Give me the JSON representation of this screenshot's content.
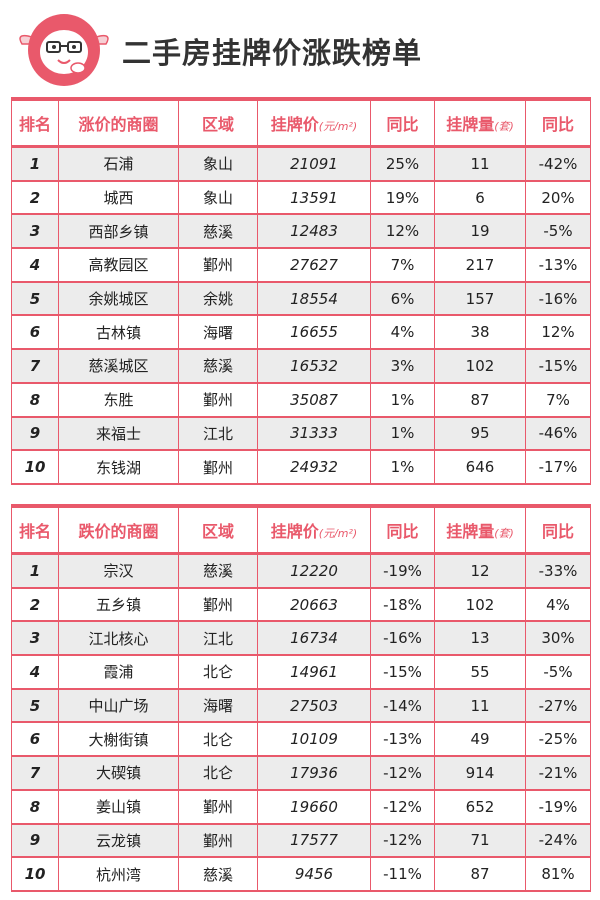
{
  "title": "二手房挂牌价涨跌榜单",
  "accent_color": "#e9596b",
  "logo_icon": "rabbit-mascot-icon",
  "rise_table": {
    "headers": {
      "rank": "排名",
      "area": "涨价的商圈",
      "district": "区域",
      "price": "挂牌价",
      "price_unit": "(元/m²)",
      "price_yoy": "同比",
      "volume": "挂牌量",
      "volume_unit": "(套)",
      "volume_yoy": "同比"
    },
    "rows": [
      {
        "rank": "1",
        "area": "石浦",
        "district": "象山",
        "price": "21091",
        "price_yoy": "25%",
        "volume": "11",
        "volume_yoy": "-42%"
      },
      {
        "rank": "2",
        "area": "城西",
        "district": "象山",
        "price": "13591",
        "price_yoy": "19%",
        "volume": "6",
        "volume_yoy": "20%"
      },
      {
        "rank": "3",
        "area": "西部乡镇",
        "district": "慈溪",
        "price": "12483",
        "price_yoy": "12%",
        "volume": "19",
        "volume_yoy": "-5%"
      },
      {
        "rank": "4",
        "area": "高教园区",
        "district": "鄞州",
        "price": "27627",
        "price_yoy": "7%",
        "volume": "217",
        "volume_yoy": "-13%"
      },
      {
        "rank": "5",
        "area": "余姚城区",
        "district": "余姚",
        "price": "18554",
        "price_yoy": "6%",
        "volume": "157",
        "volume_yoy": "-16%"
      },
      {
        "rank": "6",
        "area": "古林镇",
        "district": "海曙",
        "price": "16655",
        "price_yoy": "4%",
        "volume": "38",
        "volume_yoy": "12%"
      },
      {
        "rank": "7",
        "area": "慈溪城区",
        "district": "慈溪",
        "price": "16532",
        "price_yoy": "3%",
        "volume": "102",
        "volume_yoy": "-15%"
      },
      {
        "rank": "8",
        "area": "东胜",
        "district": "鄞州",
        "price": "35087",
        "price_yoy": "1%",
        "volume": "87",
        "volume_yoy": "7%"
      },
      {
        "rank": "9",
        "area": "来福士",
        "district": "江北",
        "price": "31333",
        "price_yoy": "1%",
        "volume": "95",
        "volume_yoy": "-46%"
      },
      {
        "rank": "10",
        "area": "东钱湖",
        "district": "鄞州",
        "price": "24932",
        "price_yoy": "1%",
        "volume": "646",
        "volume_yoy": "-17%"
      }
    ]
  },
  "fall_table": {
    "headers": {
      "rank": "排名",
      "area": "跌价的商圈",
      "district": "区域",
      "price": "挂牌价",
      "price_unit": "(元/m²)",
      "price_yoy": "同比",
      "volume": "挂牌量",
      "volume_unit": "(套)",
      "volume_yoy": "同比"
    },
    "rows": [
      {
        "rank": "1",
        "area": "宗汉",
        "district": "慈溪",
        "price": "12220",
        "price_yoy": "-19%",
        "volume": "12",
        "volume_yoy": "-33%"
      },
      {
        "rank": "2",
        "area": "五乡镇",
        "district": "鄞州",
        "price": "20663",
        "price_yoy": "-18%",
        "volume": "102",
        "volume_yoy": "4%"
      },
      {
        "rank": "3",
        "area": "江北核心",
        "district": "江北",
        "price": "16734",
        "price_yoy": "-16%",
        "volume": "13",
        "volume_yoy": "30%"
      },
      {
        "rank": "4",
        "area": "霞浦",
        "district": "北仑",
        "price": "14961",
        "price_yoy": "-15%",
        "volume": "55",
        "volume_yoy": "-5%"
      },
      {
        "rank": "5",
        "area": "中山广场",
        "district": "海曙",
        "price": "27503",
        "price_yoy": "-14%",
        "volume": "11",
        "volume_yoy": "-27%"
      },
      {
        "rank": "6",
        "area": "大榭街镇",
        "district": "北仑",
        "price": "10109",
        "price_yoy": "-13%",
        "volume": "49",
        "volume_yoy": "-25%"
      },
      {
        "rank": "7",
        "area": "大碶镇",
        "district": "北仑",
        "price": "17936",
        "price_yoy": "-12%",
        "volume": "914",
        "volume_yoy": "-21%"
      },
      {
        "rank": "8",
        "area": "姜山镇",
        "district": "鄞州",
        "price": "19660",
        "price_yoy": "-12%",
        "volume": "652",
        "volume_yoy": "-19%"
      },
      {
        "rank": "9",
        "area": "云龙镇",
        "district": "鄞州",
        "price": "17577",
        "price_yoy": "-12%",
        "volume": "71",
        "volume_yoy": "-24%"
      },
      {
        "rank": "10",
        "area": "杭州湾",
        "district": "慈溪",
        "price": "9456",
        "price_yoy": "-11%",
        "volume": "87",
        "volume_yoy": "81%"
      }
    ]
  }
}
